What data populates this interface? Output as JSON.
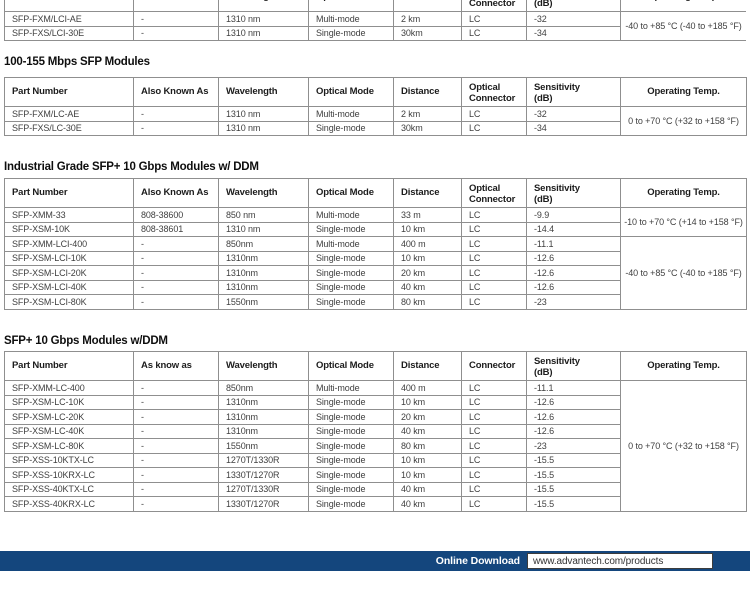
{
  "colors": {
    "footer_bar": "#14467d",
    "table_border": "#8f8f8f",
    "table_outer_border": "#555555",
    "body_text": "#3f3f3f",
    "header_text": "#1c1c1c"
  },
  "tables": [
    {
      "id": "fast-ethernet-sfp-partial",
      "title": "",
      "columns": [
        "Part Number",
        "Also Known As",
        "Wavelength",
        "Optical Mode",
        "Distance",
        "Optical\nConnector",
        "Sensitivity\n(dB)",
        "Operating Temp."
      ],
      "rows": [
        [
          "SFP-FXM/LCI-AE",
          "-",
          "1310 nm",
          "Multi-mode",
          "2 km",
          "LC",
          "-32"
        ],
        [
          "SFP-FXS/LCI-30E",
          "-",
          "1310 nm",
          "Single-mode",
          "30km",
          "LC",
          "-34"
        ]
      ],
      "temp_cells": [
        {
          "row": 0,
          "span": 2,
          "text": "-40 to +85 °C (-40 to +185 °F)"
        }
      ]
    },
    {
      "id": "sfp-100-155-mbps",
      "title": "100-155 Mbps SFP Modules",
      "columns": [
        "Part Number",
        "Also Known As",
        "Wavelength",
        "Optical Mode",
        "Distance",
        "Optical\nConnector",
        "Sensitivity\n(dB)",
        "Operating Temp."
      ],
      "rows": [
        [
          "SFP-FXM/LC-AE",
          "-",
          "1310 nm",
          "Multi-mode",
          "2 km",
          "LC",
          "-32"
        ],
        [
          "SFP-FXS/LC-30E",
          "-",
          "1310 nm",
          "Single-mode",
          "30km",
          "LC",
          "-34"
        ]
      ],
      "temp_cells": [
        {
          "row": 0,
          "span": 2,
          "text": "0 to +70 °C (+32 to +158 °F)"
        }
      ]
    },
    {
      "id": "industrial-sfp-plus-10g-ddm",
      "title": "Industrial Grade SFP+ 10 Gbps Modules w/ DDM",
      "columns": [
        "Part Number",
        "Also Known As",
        "Wavelength",
        "Optical Mode",
        "Distance",
        "Optical\nConnector",
        "Sensitivity\n(dB)",
        "Operating Temp."
      ],
      "rows": [
        [
          "SFP-XMM-33",
          "808-38600",
          "850 nm",
          "Multi-mode",
          "33 m",
          "LC",
          "-9.9"
        ],
        [
          "SFP-XSM-10K",
          "808-38601",
          "1310 nm",
          "Single-mode",
          "10 km",
          "LC",
          "-14.4"
        ],
        [
          "SFP-XMM-LCI-400",
          "-",
          "850nm",
          "Multi-mode",
          "400 m",
          "LC",
          "-11.1"
        ],
        [
          "SFP-XSM-LCI-10K",
          "-",
          "1310nm",
          "Single-mode",
          "10 km",
          "LC",
          "-12.6"
        ],
        [
          "SFP-XSM-LCI-20K",
          "-",
          "1310nm",
          "Single-mode",
          "20 km",
          "LC",
          "-12.6"
        ],
        [
          "SFP-XSM-LCI-40K",
          "-",
          "1310nm",
          "Single-mode",
          "40 km",
          "LC",
          "-12.6"
        ],
        [
          "SFP-XSM-LCI-80K",
          "-",
          "1550nm",
          "Single-mode",
          "80 km",
          "LC",
          "-23"
        ]
      ],
      "temp_cells": [
        {
          "row": 0,
          "span": 2,
          "text": "-10 to +70 °C (+14 to +158 °F)"
        },
        {
          "row": 2,
          "span": 5,
          "text": "-40 to +85 °C (-40 to +185 °F)"
        }
      ]
    },
    {
      "id": "sfp-plus-10g-ddm",
      "title": "SFP+ 10 Gbps Modules w/DDM",
      "columns": [
        "Part Number",
        "As know as",
        "Wavelength",
        "Optical Mode",
        "Distance",
        "Connector",
        "Sensitivity\n(dB)",
        "Operating Temp."
      ],
      "rows": [
        [
          "SFP-XMM-LC-400",
          "-",
          "850nm",
          "Multi-mode",
          "400 m",
          "LC",
          "-11.1"
        ],
        [
          "SFP-XSM-LC-10K",
          "-",
          "1310nm",
          "Single-mode",
          "10 km",
          "LC",
          "-12.6"
        ],
        [
          "SFP-XSM-LC-20K",
          "-",
          "1310nm",
          "Single-mode",
          "20 km",
          "LC",
          "-12.6"
        ],
        [
          "SFP-XSM-LC-40K",
          "-",
          "1310nm",
          "Single-mode",
          "40 km",
          "LC",
          "-12.6"
        ],
        [
          "SFP-XSM-LC-80K",
          "-",
          "1550nm",
          "Single-mode",
          "80 km",
          "LC",
          "-23"
        ],
        [
          "SFP-XSS-10KTX-LC",
          "-",
          "1270T/1330R",
          "Single-mode",
          "10 km",
          "LC",
          "-15.5"
        ],
        [
          "SFP-XSS-10KRX-LC",
          "-",
          "1330T/1270R",
          "Single-mode",
          "10 km",
          "LC",
          "-15.5"
        ],
        [
          "SFP-XSS-40KTX-LC",
          "-",
          "1270T/1330R",
          "Single-mode",
          "40 km",
          "LC",
          "-15.5"
        ],
        [
          "SFP-XSS-40KRX-LC",
          "-",
          "1330T/1270R",
          "Single-mode",
          "40 km",
          "LC",
          "-15.5"
        ]
      ],
      "temp_cells": [
        {
          "row": 0,
          "span": 9,
          "text": "0 to +70 °C (+32 to +158 °F)"
        }
      ]
    }
  ],
  "footer": {
    "label": "Online Download",
    "url": "www.advantech.com/products"
  }
}
